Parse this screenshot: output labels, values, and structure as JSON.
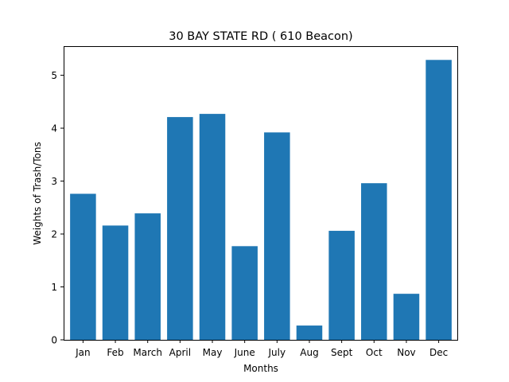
{
  "chart_data": {
    "type": "bar",
    "title": "30 BAY STATE RD ( 610 Beacon)",
    "xlabel": "Months",
    "ylabel": "Weights of Trash/Tons",
    "categories": [
      "Jan",
      "Feb",
      "March",
      "April",
      "May",
      "June",
      "July",
      "Aug",
      "Sept",
      "Oct",
      "Nov",
      "Dec"
    ],
    "values": [
      2.76,
      2.16,
      2.39,
      4.21,
      4.27,
      1.77,
      3.92,
      0.27,
      2.06,
      2.96,
      0.87,
      5.29
    ],
    "ylim": [
      0,
      5.55
    ],
    "yticks": [
      0,
      1,
      2,
      3,
      4,
      5
    ],
    "ytick_labels": [
      "0",
      "1",
      "2",
      "3",
      "4",
      "5"
    ],
    "grid": false,
    "colors": {
      "bar": "#1f77b4",
      "axis": "#000000"
    }
  }
}
